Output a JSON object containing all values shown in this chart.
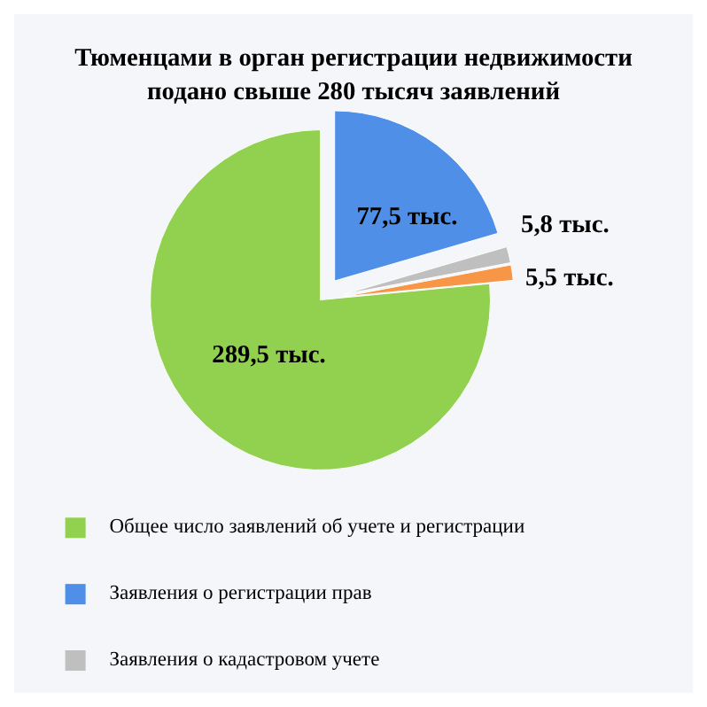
{
  "chart_data": {
    "type": "pie",
    "title": "Тюменцами в орган регистрации недвижимости\nподано свыше 280 тысяч заявлений",
    "categories": [
      "Общее число заявлений об учете и регистрации",
      "Заявления о регистрации  прав",
      "Заявления о кадастровом учете",
      null
    ],
    "values": [
      289.5,
      77.5,
      5.8,
      5.5
    ],
    "value_labels": [
      "289,5 тыс.",
      "77,5 тыс.",
      "5,8 тыс.",
      "5,5 тыс."
    ],
    "colors": [
      "#92d050",
      "#4f8fe8",
      "#bfbfbf",
      "#f79646"
    ],
    "legend": "bottom"
  }
}
